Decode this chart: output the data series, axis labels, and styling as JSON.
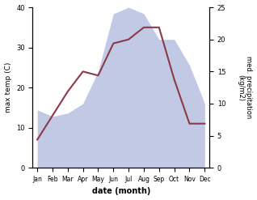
{
  "months": [
    "Jan",
    "Feb",
    "Mar",
    "Apr",
    "May",
    "Jun",
    "Jul",
    "Aug",
    "Sep",
    "Oct",
    "Nov",
    "Dec"
  ],
  "max_temp": [
    7,
    13,
    19,
    24,
    23,
    31,
    32,
    35,
    35,
    22,
    11,
    11
  ],
  "precipitation": [
    9,
    8,
    8.5,
    10,
    15,
    24,
    25,
    24,
    20,
    20,
    16,
    10
  ],
  "temp_color": "#8B3A4A",
  "precip_fill_color": "#b8c0e0",
  "xlabel": "date (month)",
  "ylabel_left": "max temp (C)",
  "ylabel_right": "med. precipitation\n(kg/m2)",
  "ylim_left": [
    0,
    40
  ],
  "ylim_right": [
    0,
    25
  ],
  "yticks_left": [
    0,
    10,
    20,
    30,
    40
  ],
  "yticks_right": [
    0,
    5,
    10,
    15,
    20,
    25
  ],
  "background_color": "#ffffff"
}
